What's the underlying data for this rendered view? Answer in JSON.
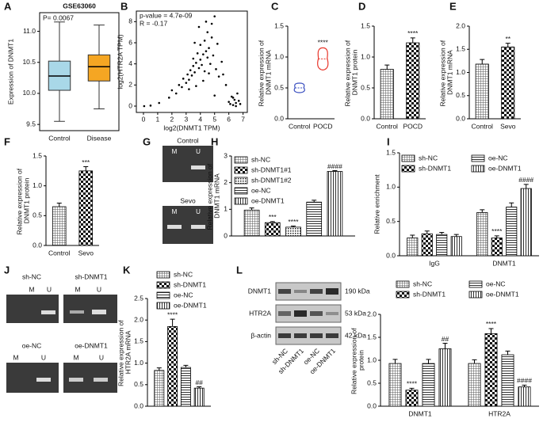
{
  "figure": {
    "panel_labels": [
      "A",
      "B",
      "C",
      "D",
      "E",
      "F",
      "G",
      "H",
      "I",
      "J",
      "K",
      "L"
    ]
  },
  "gel_G": {
    "groups": [
      "Control",
      "Sevo"
    ],
    "lanes": [
      "M",
      "U"
    ]
  },
  "gel_J": {
    "groups": [
      "sh-NC",
      "sh-DNMT1",
      "oe-NC",
      "oe-DNMT1"
    ],
    "lanes": [
      "M",
      "U"
    ]
  },
  "blot_L": {
    "proteins": [
      "DNMT1",
      "HTR2A",
      "β-actin"
    ],
    "sizes": [
      "190 kDa",
      "53 kDa",
      "42 kDa"
    ],
    "lanes": [
      "sh-NC",
      "sh-DNMT1",
      "oe-NC",
      "oe-DNMT1"
    ]
  },
  "chart_data": [
    {
      "type": "box",
      "title": "GSE63060",
      "annotation": "P= 0.0067",
      "ylabel": "Expression of DNMT1",
      "categories": [
        "Control",
        "Disease"
      ],
      "colors": [
        "#a9d8e8",
        "#f5a623"
      ],
      "min": [
        9.55,
        9.75
      ],
      "q1": [
        10.05,
        10.2
      ],
      "median": [
        10.28,
        10.43
      ],
      "q3": [
        10.52,
        10.62
      ],
      "max": [
        11.15,
        11.1
      ],
      "ylim": [
        9.4,
        11.3
      ],
      "yticks": [
        9.5,
        {
          "value": 10,
          "label": "10.0"
        },
        10.5,
        {
          "value": 11,
          "label": "11.0"
        }
      ]
    },
    {
      "type": "scatter",
      "annotations": [
        "p-value = 4.7e-09",
        "R = -0.17"
      ],
      "xlabel": "log2(DNMT1 TPM)",
      "ylabel": "log2(HTR2A TPM)",
      "color": "#000000",
      "x": [
        0.05,
        0.5,
        1.1,
        1.8,
        2.0,
        2.3,
        2.5,
        2.7,
        2.8,
        3.0,
        3.1,
        3.2,
        3.3,
        3.4,
        3.5,
        3.5,
        3.6,
        3.7,
        3.8,
        3.9,
        4.0,
        4.0,
        4.1,
        4.2,
        4.3,
        4.3,
        4.4,
        4.5,
        4.5,
        4.6,
        4.7,
        4.8,
        4.9,
        5.0,
        5.1,
        5.2,
        5.3,
        5.5,
        5.6,
        5.8,
        3.6,
        3.9,
        4.2,
        4.6,
        3.2,
        4.8,
        5.0,
        6.0,
        6.1,
        6.2,
        6.3,
        6.4,
        6.5,
        6.6,
        6.7,
        6.8,
        6.3,
        6.5,
        4.4,
        3.7
      ],
      "y": [
        0.0,
        0.05,
        0.3,
        0.8,
        1.5,
        1.2,
        2.0,
        1.8,
        2.6,
        2.2,
        3.0,
        2.5,
        3.4,
        2.9,
        3.8,
        4.5,
        3.2,
        4.1,
        5.0,
        3.6,
        4.4,
        5.8,
        3.9,
        4.9,
        6.2,
        3.3,
        5.2,
        4.6,
        7.0,
        5.5,
        4.0,
        6.5,
        4.8,
        8.5,
        3.5,
        5.9,
        2.8,
        4.2,
        3.0,
        2.0,
        6.0,
        7.5,
        2.4,
        3.1,
        1.6,
        7.8,
        1.0,
        0.4,
        0.2,
        0.9,
        0.1,
        0.6,
        0.3,
        1.2,
        0.5,
        0.2,
        0.8,
        0.0,
        8.0,
        1.9
      ],
      "xlim": [
        -0.5,
        7.3
      ],
      "ylim": [
        -0.6,
        9
      ],
      "xticks": [
        0,
        1,
        2,
        3,
        4,
        5,
        6,
        7
      ],
      "yticks": [
        0,
        2,
        4,
        6,
        8
      ]
    },
    {
      "type": "violin",
      "ylabel": "Relative expression of DNMT1 mRNA",
      "categories": [
        "Control",
        "POCD"
      ],
      "values": [
        0.5,
        0.97
      ],
      "colors": [
        "#3a4fc0",
        "#e8352a"
      ],
      "significance": [
        null,
        "****"
      ],
      "ylim": [
        0,
        1.5
      ],
      "yticks": [
        {
          "value": 0,
          "label": "0.0"
        },
        0.5,
        {
          "value": 1,
          "label": "1.0"
        },
        1.5
      ]
    },
    {
      "type": "bar",
      "ylabel": "Relative expression of DNMT1 protein",
      "categories": [
        "Control",
        "POCD"
      ],
      "values": [
        0.8,
        1.23
      ],
      "errors": [
        0.07,
        0.08
      ],
      "patterns": [
        "grid",
        "checker"
      ],
      "significance": [
        null,
        "****"
      ],
      "ylim": [
        0,
        1.5
      ],
      "yticks": [
        {
          "value": 0,
          "label": "0.0"
        },
        0.5,
        {
          "value": 1,
          "label": "1.0"
        },
        1.5
      ]
    },
    {
      "type": "bar",
      "ylabel": "Relative expression of DNMT1 mRNA",
      "categories": [
        "Control",
        "Sevo"
      ],
      "values": [
        1.18,
        1.55
      ],
      "errors": [
        0.1,
        0.08
      ],
      "patterns": [
        "grid",
        "checker"
      ],
      "significance": [
        null,
        "**"
      ],
      "ylim": [
        0,
        2
      ],
      "yticks": [
        {
          "value": 0,
          "label": "0.0"
        },
        0.5,
        {
          "value": 1,
          "label": "1.0"
        },
        1.5,
        {
          "value": 2,
          "label": "2.0"
        }
      ]
    },
    {
      "type": "bar",
      "ylabel": "Relative expression of DNMT1 protein",
      "categories": [
        "Control",
        "Sevo"
      ],
      "values": [
        0.65,
        1.25
      ],
      "errors": [
        0.06,
        0.07
      ],
      "patterns": [
        "grid",
        "checker"
      ],
      "significance": [
        null,
        "***"
      ],
      "ylim": [
        0,
        1.5
      ],
      "yticks": [
        {
          "value": 0,
          "label": "0.0"
        },
        0.5,
        {
          "value": 1,
          "label": "1.0"
        },
        1.5
      ]
    },
    {
      "type": "bar",
      "ylabel": "Relative expression of DNMT1 mRNA",
      "categories": [
        null
      ],
      "legend": true,
      "series": [
        {
          "name": "sh-NC",
          "pattern": "grid",
          "values": [
            0.97
          ],
          "errors": [
            0.08
          ],
          "significance": [
            null
          ]
        },
        {
          "name": "sh-DNMT1#1",
          "pattern": "checker",
          "values": [
            0.5
          ],
          "errors": [
            0.04
          ],
          "significance": [
            "***"
          ]
        },
        {
          "name": "sh-DNMT1#2",
          "pattern": "dots",
          "values": [
            0.33
          ],
          "errors": [
            0.04
          ],
          "significance": [
            "****"
          ]
        },
        {
          "name": "oe-NC",
          "pattern": "hlines",
          "values": [
            1.27
          ],
          "errors": [
            0.07
          ],
          "significance": [
            null
          ]
        },
        {
          "name": "oe-DNMT1",
          "pattern": "vlines",
          "values": [
            2.42
          ],
          "errors": [
            0.03
          ],
          "significance": [
            "####"
          ]
        }
      ],
      "ylim": [
        0,
        3
      ],
      "yticks": [
        0,
        1,
        2,
        3
      ]
    },
    {
      "type": "bar",
      "ylabel": "Relative enrichment",
      "categories": [
        "IgG",
        "DNMT1"
      ],
      "legend": true,
      "series": [
        {
          "name": "sh-NC",
          "pattern": "grid",
          "values": [
            0.26,
            0.63
          ],
          "errors": [
            0.04,
            0.04
          ],
          "significance": [
            null,
            null
          ]
        },
        {
          "name": "sh-DNMT1",
          "pattern": "checker",
          "values": [
            0.32,
            0.26
          ],
          "errors": [
            0.04,
            0.03
          ],
          "significance": [
            null,
            "****"
          ]
        },
        {
          "name": "oe-NC",
          "pattern": "hlines",
          "values": [
            0.31,
            0.71
          ],
          "errors": [
            0.03,
            0.06
          ],
          "significance": [
            null,
            null
          ]
        },
        {
          "name": "oe-DNMT1",
          "pattern": "vlines",
          "values": [
            0.28,
            0.98
          ],
          "errors": [
            0.03,
            0.06
          ],
          "significance": [
            null,
            "####"
          ]
        }
      ],
      "ylim": [
        0,
        1.5
      ],
      "yticks": [
        {
          "value": 0,
          "label": "0.0"
        },
        0.5,
        {
          "value": 1,
          "label": "1.0"
        },
        1.5
      ]
    },
    {
      "type": "bar",
      "ylabel": "Relative expression of HTR2A mRNA",
      "categories": [
        null
      ],
      "legend": true,
      "series": [
        {
          "name": "sh-NC",
          "pattern": "grid",
          "values": [
            0.83
          ],
          "errors": [
            0.06
          ],
          "significance": [
            null
          ]
        },
        {
          "name": "sh-DNMT1",
          "pattern": "checker",
          "values": [
            1.85
          ],
          "errors": [
            0.17
          ],
          "significance": [
            "****"
          ]
        },
        {
          "name": "oe-NC",
          "pattern": "hlines",
          "values": [
            0.9
          ],
          "errors": [
            0.05
          ],
          "significance": [
            null
          ]
        },
        {
          "name": "oe-DNMT1",
          "pattern": "vlines",
          "values": [
            0.42
          ],
          "errors": [
            0.03
          ],
          "significance": [
            "##"
          ]
        }
      ],
      "ylim": [
        0,
        2.5
      ],
      "yticks": [
        {
          "value": 0,
          "label": "0.0"
        },
        0.5,
        {
          "value": 1,
          "label": "1.0"
        },
        1.5,
        {
          "value": 2,
          "label": "2.0"
        },
        2.5
      ]
    },
    {
      "type": "bar",
      "ylabel": "Relative expression of protein",
      "categories": [
        "DNMT1",
        "HTR2A"
      ],
      "legend": true,
      "series": [
        {
          "name": "sh-NC",
          "pattern": "grid",
          "values": [
            0.93,
            0.93
          ],
          "errors": [
            0.09,
            0.08
          ],
          "significance": [
            null,
            null
          ]
        },
        {
          "name": "sh-DNMT1",
          "pattern": "checker",
          "values": [
            0.35,
            1.58
          ],
          "errors": [
            0.04,
            0.11
          ],
          "significance": [
            "****",
            "****"
          ]
        },
        {
          "name": "oe-NC",
          "pattern": "hlines",
          "values": [
            0.93,
            1.12
          ],
          "errors": [
            0.09,
            0.08
          ],
          "significance": [
            null,
            null
          ]
        },
        {
          "name": "oe-DNMT1",
          "pattern": "vlines",
          "values": [
            1.25,
            0.42
          ],
          "errors": [
            0.12,
            0.04
          ],
          "significance": [
            "##",
            "####"
          ]
        }
      ],
      "ylim": [
        0,
        2
      ],
      "yticks": [
        {
          "value": 0,
          "label": "0.0"
        },
        0.5,
        {
          "value": 1,
          "label": "1.0"
        },
        1.5,
        {
          "value": 2,
          "label": "2.0"
        }
      ]
    }
  ]
}
